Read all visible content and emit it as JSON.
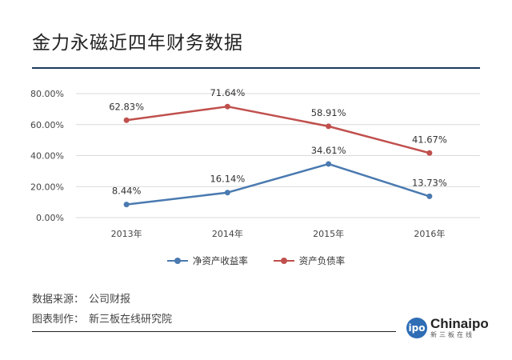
{
  "title": "金力永磁近四年财务数据",
  "chart_data": {
    "type": "line",
    "categories": [
      "2013年",
      "2014年",
      "2015年",
      "2016年"
    ],
    "ylim": [
      0,
      80
    ],
    "yticks": [
      "0.00%",
      "20.00%",
      "40.00%",
      "60.00%",
      "80.00%"
    ],
    "ytick_values": [
      0,
      20,
      40,
      60,
      80
    ],
    "series": [
      {
        "name": "净资产收益率",
        "color": "#4a7ab0",
        "values": [
          8.44,
          16.14,
          34.61,
          13.73
        ],
        "labels": [
          "8.44%",
          "16.14%",
          "34.61%",
          "13.73%"
        ]
      },
      {
        "name": "资产负债率",
        "color": "#c0504d",
        "values": [
          62.83,
          71.64,
          58.91,
          41.67
        ],
        "labels": [
          "62.83%",
          "71.64%",
          "58.91%",
          "41.67%"
        ]
      }
    ],
    "legend_position": "bottom"
  },
  "source": {
    "data_label": "数据来源：",
    "data_value": "公司财报",
    "made_label": "图表制作：",
    "made_value": "新三板在线研究院"
  },
  "logo": {
    "badge": "ipo",
    "name": "Chinaipo",
    "sub": "新三板在线"
  }
}
